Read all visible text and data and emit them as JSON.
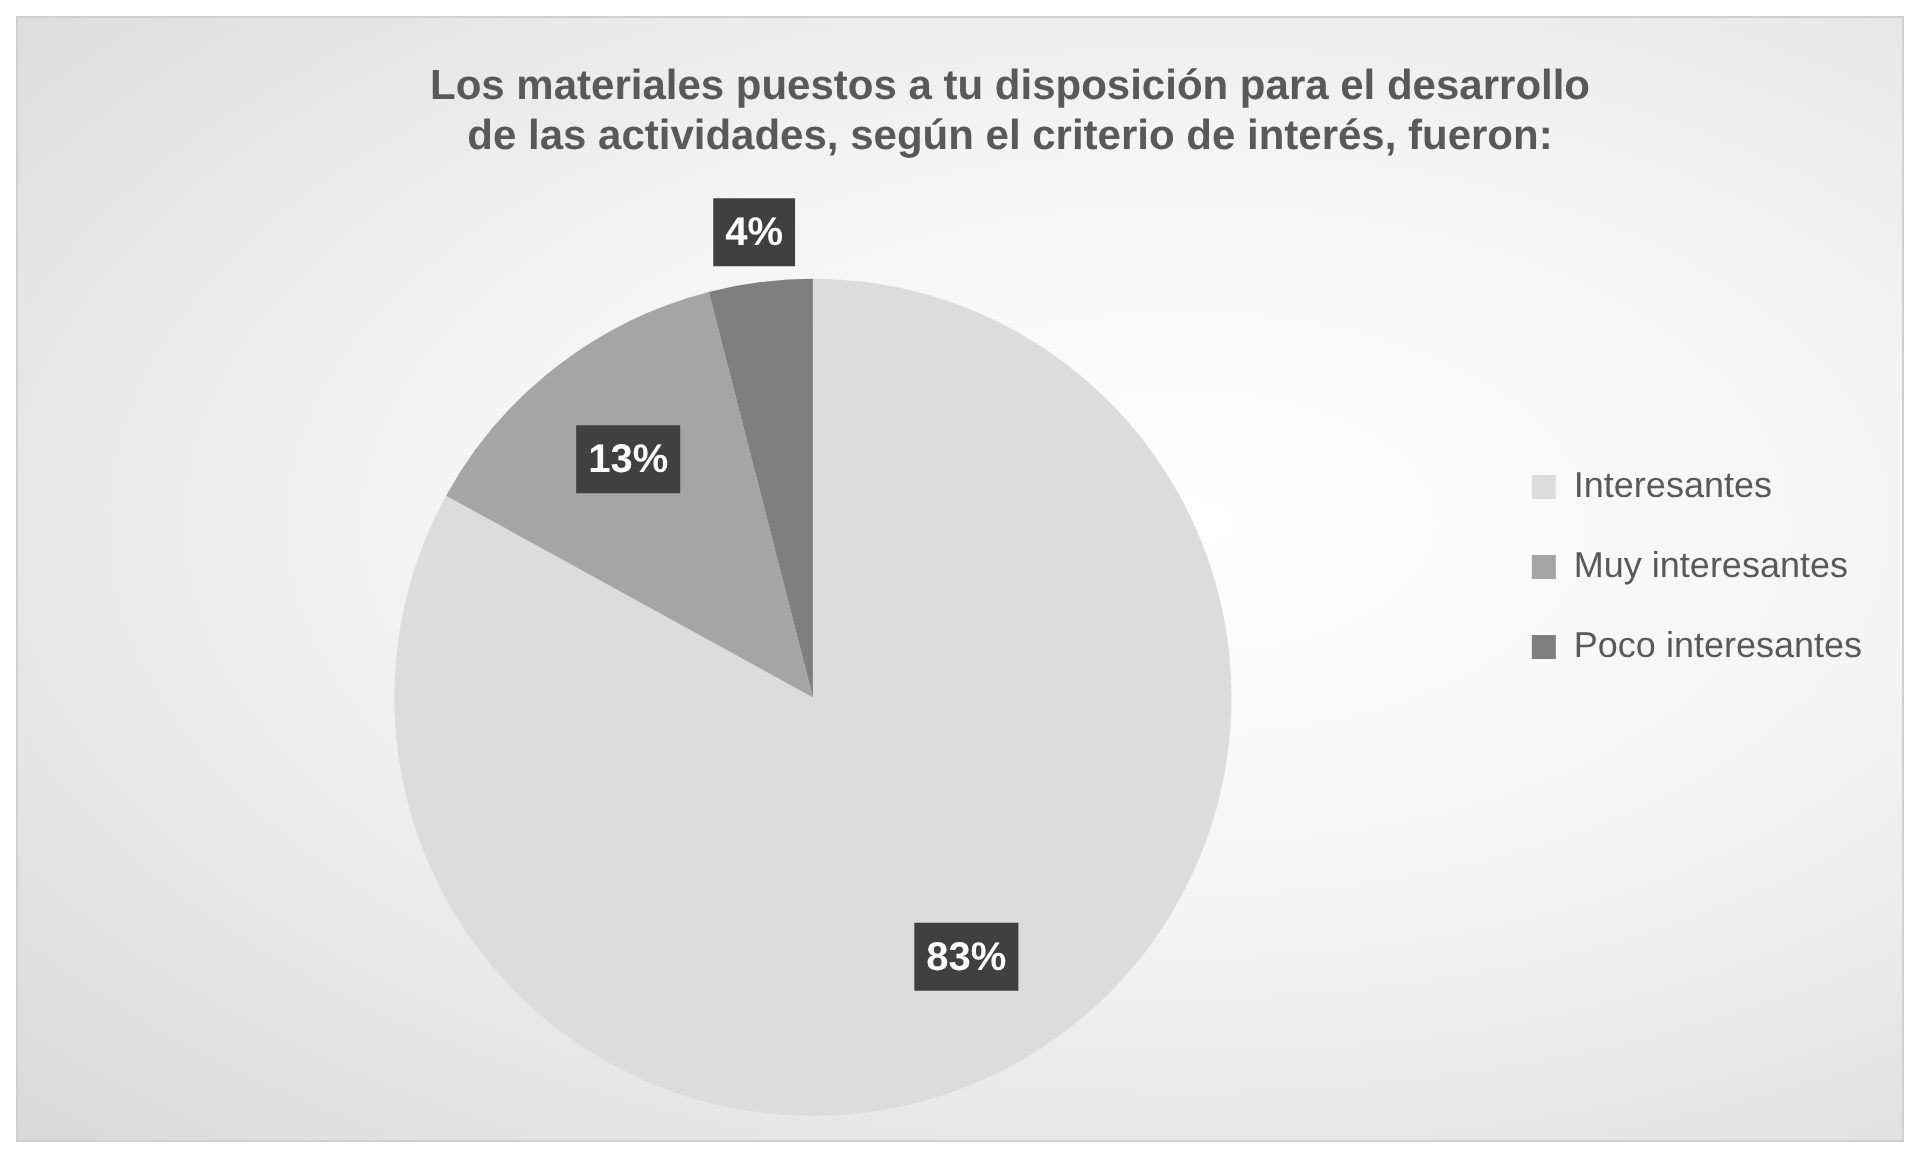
{
  "chart_data": {
    "type": "pie",
    "title": "Los materiales puestos a tu disposición para el desarrollo\nde las actividades, según el criterio de interés, fueron:",
    "categories": [
      "Interesantes",
      "Muy interesantes",
      "Poco interesantes"
    ],
    "values": [
      83,
      13,
      4
    ],
    "colors": [
      "#dcdcdc",
      "#a5a5a5",
      "#7f7f7f"
    ],
    "value_labels": [
      "83%",
      "13%",
      "4%"
    ],
    "legend": "right"
  }
}
